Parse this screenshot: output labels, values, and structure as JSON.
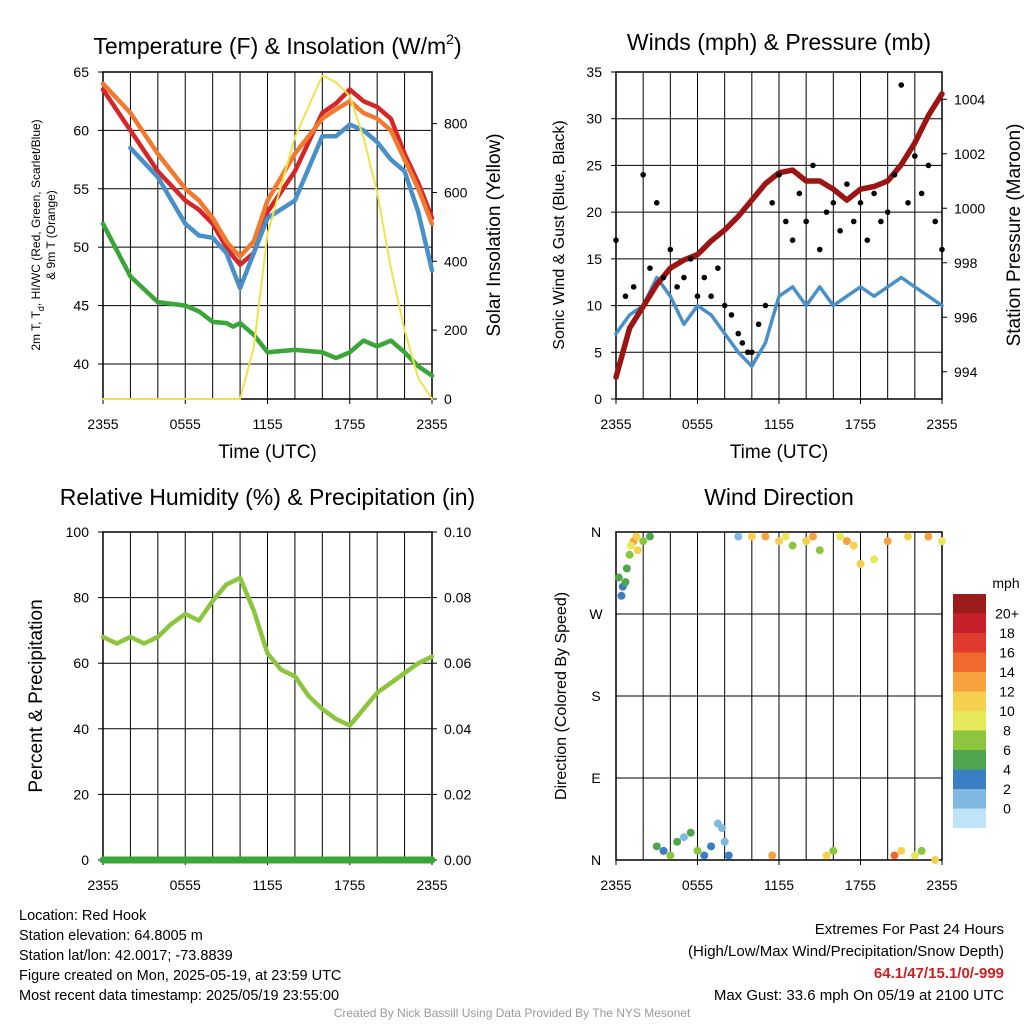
{
  "chart_data": [
    {
      "type": "line",
      "title": "Temperature (F) & Insolation (W/m",
      "title_sup": "2",
      "title_end": ")",
      "xlabel": "Time (UTC)",
      "ylabel_left_lines": [
        "2m T, T",
        "d",
        ", HI/WC (Red, Green, Scarlet/Blue)",
        "& 9m T (Orange)"
      ],
      "ylabel_right": "Solar Insolation (Yellow)",
      "x_ticks": [
        "2355",
        "0555",
        "1155",
        "1755",
        "2355"
      ],
      "ylim": [
        37,
        65
      ],
      "y_ticks": [
        40,
        45,
        50,
        55,
        60,
        65
      ],
      "y2lim": [
        0,
        950
      ],
      "y2_ticks": [
        0,
        200,
        400,
        600,
        800
      ],
      "x_hours": [
        0,
        2,
        4,
        6,
        7,
        8,
        9,
        9.5,
        10,
        11,
        12,
        14,
        16,
        17,
        18,
        19,
        20,
        21,
        22,
        23,
        24
      ],
      "series": [
        {
          "color": "#d62728",
          "values": [
            63.5,
            60,
            56.5,
            54,
            53.2,
            52,
            50,
            49.2,
            48.5,
            49.5,
            53,
            56.5,
            61.5,
            62.3,
            63.5,
            62.5,
            62,
            61,
            58,
            55.5,
            52.5
          ]
        },
        {
          "color": "#f07a30",
          "values": [
            64,
            61.5,
            58,
            55,
            54,
            52.5,
            50.5,
            49.8,
            49.2,
            50.5,
            54,
            58,
            61,
            61.8,
            62.5,
            61.5,
            61,
            60,
            57.5,
            55,
            52
          ]
        },
        {
          "color": "#3aa63a",
          "values": [
            52,
            47.5,
            45.3,
            45,
            44.5,
            43.6,
            43.5,
            43.2,
            43.5,
            42.5,
            41,
            41.2,
            41,
            40.5,
            41,
            42,
            41.5,
            42,
            41,
            39.8,
            39
          ]
        },
        {
          "color": "#4a90c8",
          "values": [
            null,
            58.5,
            56,
            52,
            51,
            50.8,
            49.5,
            48,
            46.5,
            49.5,
            52.5,
            54,
            59.5,
            59.5,
            60.5,
            60,
            59,
            57.5,
            56.5,
            53,
            48
          ]
        },
        {
          "color": "#f0e24a",
          "axis": "right",
          "values": [
            0,
            0,
            0,
            0,
            0,
            0,
            0,
            0,
            0,
            150,
            480,
            760,
            940,
            920,
            880,
            760,
            600,
            380,
            200,
            60,
            0
          ]
        }
      ]
    },
    {
      "type": "line",
      "title": "Winds (mph) & Pressure (mb)",
      "xlabel": "Time (UTC)",
      "ylabel": "Sonic Wind & Gust (Blue, Black)",
      "ylabel_right": "Station Pressure (Maroon)",
      "x_ticks": [
        "2355",
        "0555",
        "1155",
        "1755",
        "2355"
      ],
      "ylim": [
        0,
        35
      ],
      "y_ticks": [
        0,
        5,
        10,
        15,
        20,
        25,
        30,
        35
      ],
      "y2lim": [
        993,
        1005
      ],
      "y2_ticks": [
        994,
        996,
        998,
        1000,
        1002,
        1004
      ],
      "x_hours": [
        0,
        1,
        2,
        3,
        4,
        5,
        6,
        7,
        8,
        9,
        10,
        11,
        12,
        13,
        14,
        15,
        16,
        17,
        18,
        19,
        20,
        21,
        22,
        23,
        24
      ],
      "series": [
        {
          "color": "#4a90c8",
          "values": [
            7,
            9,
            10,
            13,
            11,
            8,
            10,
            9,
            7,
            5,
            3.5,
            6,
            11,
            12,
            10,
            12,
            10,
            11,
            12,
            11,
            12,
            13,
            12,
            11,
            10
          ]
        },
        {
          "color": "#9b1515",
          "axis": "right",
          "values": [
            993.8,
            995.6,
            996.4,
            997.2,
            997.8,
            998.1,
            998.3,
            998.8,
            999.2,
            999.7,
            1000.3,
            1000.9,
            1001.3,
            1001.4,
            1001.0,
            1001.0,
            1000.7,
            1000.3,
            1000.7,
            1000.8,
            1001.0,
            1001.6,
            1002.4,
            1003.4,
            1004.2
          ]
        }
      ],
      "scatter": {
        "color": "#000000",
        "x_hours": [
          0,
          0.7,
          1.3,
          2,
          2.5,
          3,
          3.5,
          4,
          4.5,
          5,
          5.5,
          6,
          6.5,
          7,
          7.5,
          8,
          8.5,
          9,
          9.3,
          9.7,
          10,
          10.5,
          11,
          11.5,
          12,
          12.5,
          13,
          13.5,
          14,
          14.5,
          15,
          15.5,
          16,
          16.5,
          17,
          17.5,
          18,
          18.5,
          19,
          19.5,
          20,
          20.5,
          21,
          21.5,
          22,
          22.5,
          23,
          23.5,
          24
        ],
        "values": [
          17,
          11,
          12,
          24,
          14,
          21,
          13,
          16,
          12,
          13,
          15,
          11,
          13,
          11,
          14,
          10,
          9,
          7,
          6,
          5,
          5,
          8,
          10,
          21,
          24,
          19,
          17,
          22,
          19,
          25,
          16,
          20,
          21,
          18,
          23,
          19,
          21,
          17,
          22,
          19,
          20,
          24,
          33.6,
          21,
          26,
          22,
          25,
          19,
          16
        ]
      }
    },
    {
      "type": "line",
      "title": "Relative Humidity (%) & Precipitation (in)",
      "ylabel": "Percent & Precipitation",
      "x_ticks": [
        "2355",
        "0555",
        "1155",
        "1755",
        "2355"
      ],
      "ylim": [
        0,
        100
      ],
      "y_ticks": [
        0,
        20,
        40,
        60,
        80,
        100
      ],
      "y2lim": [
        0,
        0.1
      ],
      "y2_ticks": [
        "0.00",
        "0.02",
        "0.04",
        "0.06",
        "0.08",
        "0.10"
      ],
      "x_hours": [
        0,
        1,
        2,
        3,
        4,
        5,
        6,
        7,
        8,
        9,
        10,
        11,
        12,
        13,
        14,
        15,
        16,
        17,
        18,
        19,
        20,
        21,
        22,
        23,
        24
      ],
      "series": [
        {
          "color": "#8cc63f",
          "values": [
            68,
            66,
            68,
            66,
            68,
            72,
            75,
            73,
            79,
            84,
            86,
            76,
            63,
            58,
            56,
            50,
            46,
            43,
            41,
            46,
            51,
            54,
            57,
            60,
            62
          ]
        },
        {
          "color": "#3aa63a",
          "axis": "right",
          "values": [
            0,
            0,
            0,
            0,
            0,
            0,
            0,
            0,
            0,
            0,
            0,
            0,
            0,
            0,
            0,
            0,
            0,
            0,
            0,
            0,
            0,
            0,
            0,
            0,
            0
          ]
        }
      ]
    },
    {
      "type": "scatter",
      "title": "Wind Direction",
      "ylabel": "Direction (Colored By Speed)",
      "x_ticks": [
        "2355",
        "0555",
        "1155",
        "1755",
        "2355"
      ],
      "ylim": [
        0,
        360
      ],
      "y_ticks": [
        "N",
        "E",
        "S",
        "W",
        "N"
      ],
      "legend_title": "mph",
      "legend_labels": [
        "20+",
        "18",
        "16",
        "14",
        "12",
        "10",
        "8",
        "6",
        "4",
        "2",
        "0"
      ],
      "legend_colors": [
        "#9c1b1b",
        "#c8202a",
        "#e03b2d",
        "#f06a2e",
        "#f7a23e",
        "#f5d04f",
        "#e6e85a",
        "#8cc63f",
        "#4fa64f",
        "#3a7fc1",
        "#7fb8e0",
        "#bfe3f7"
      ],
      "points_hours": [
        0.2,
        0.5,
        0.8,
        1,
        1.3,
        1.6,
        0.4,
        0.7,
        1.1,
        1.5,
        2,
        2.5,
        3,
        3.5,
        4,
        4.5,
        5,
        5.5,
        6,
        6.5,
        7,
        7.5,
        7.8,
        8,
        8.3,
        9,
        10,
        11,
        11.5,
        12,
        12.5,
        13,
        14,
        14.5,
        15,
        15.5,
        16,
        16.5,
        17,
        17.5,
        18,
        19,
        20,
        20.5,
        21,
        21.5,
        22,
        22.5,
        23,
        23.5,
        24
      ],
      "points_dir": [
        310,
        300,
        320,
        335,
        350,
        340,
        290,
        305,
        345,
        355,
        350,
        355,
        15,
        10,
        5,
        20,
        25,
        30,
        10,
        5,
        15,
        40,
        35,
        20,
        5,
        355,
        355,
        355,
        5,
        350,
        355,
        345,
        350,
        355,
        340,
        5,
        10,
        355,
        350,
        345,
        325,
        330,
        350,
        5,
        10,
        355,
        5,
        10,
        355,
        0,
        350
      ],
      "points_speed": [
        6,
        5,
        7,
        9,
        14,
        12,
        5,
        6,
        11,
        13,
        8,
        6,
        7,
        5,
        8,
        6,
        3,
        6,
        8,
        5,
        4,
        3,
        2,
        3,
        5,
        2,
        12,
        14,
        15,
        13,
        10,
        9,
        12,
        14,
        8,
        12,
        9,
        11,
        15,
        13,
        12,
        10,
        14,
        16,
        13,
        12,
        11,
        9,
        14,
        12,
        10
      ]
    }
  ],
  "info": {
    "location": "Location: Red Hook",
    "elevation": "Station elevation: 64.8005 m",
    "latlon": "Station lat/lon: 42.0017; -73.8839",
    "created": "Figure created on Mon, 2025-05-19, at 23:59 UTC",
    "recent": "Most recent data timestamp: 2025/05/19 23:55:00"
  },
  "extremes": {
    "title": "Extremes For Past 24 Hours",
    "subtitle": "(High/Low/Max Wind/Precipitation/Snow Depth)",
    "values": "64.1/47/15.1/0/-999",
    "gust": "Max Gust: 33.6 mph On 05/19 at 2100 UTC"
  },
  "credit": "Created By Nick Bassill Using Data Provided By The NYS Mesonet"
}
